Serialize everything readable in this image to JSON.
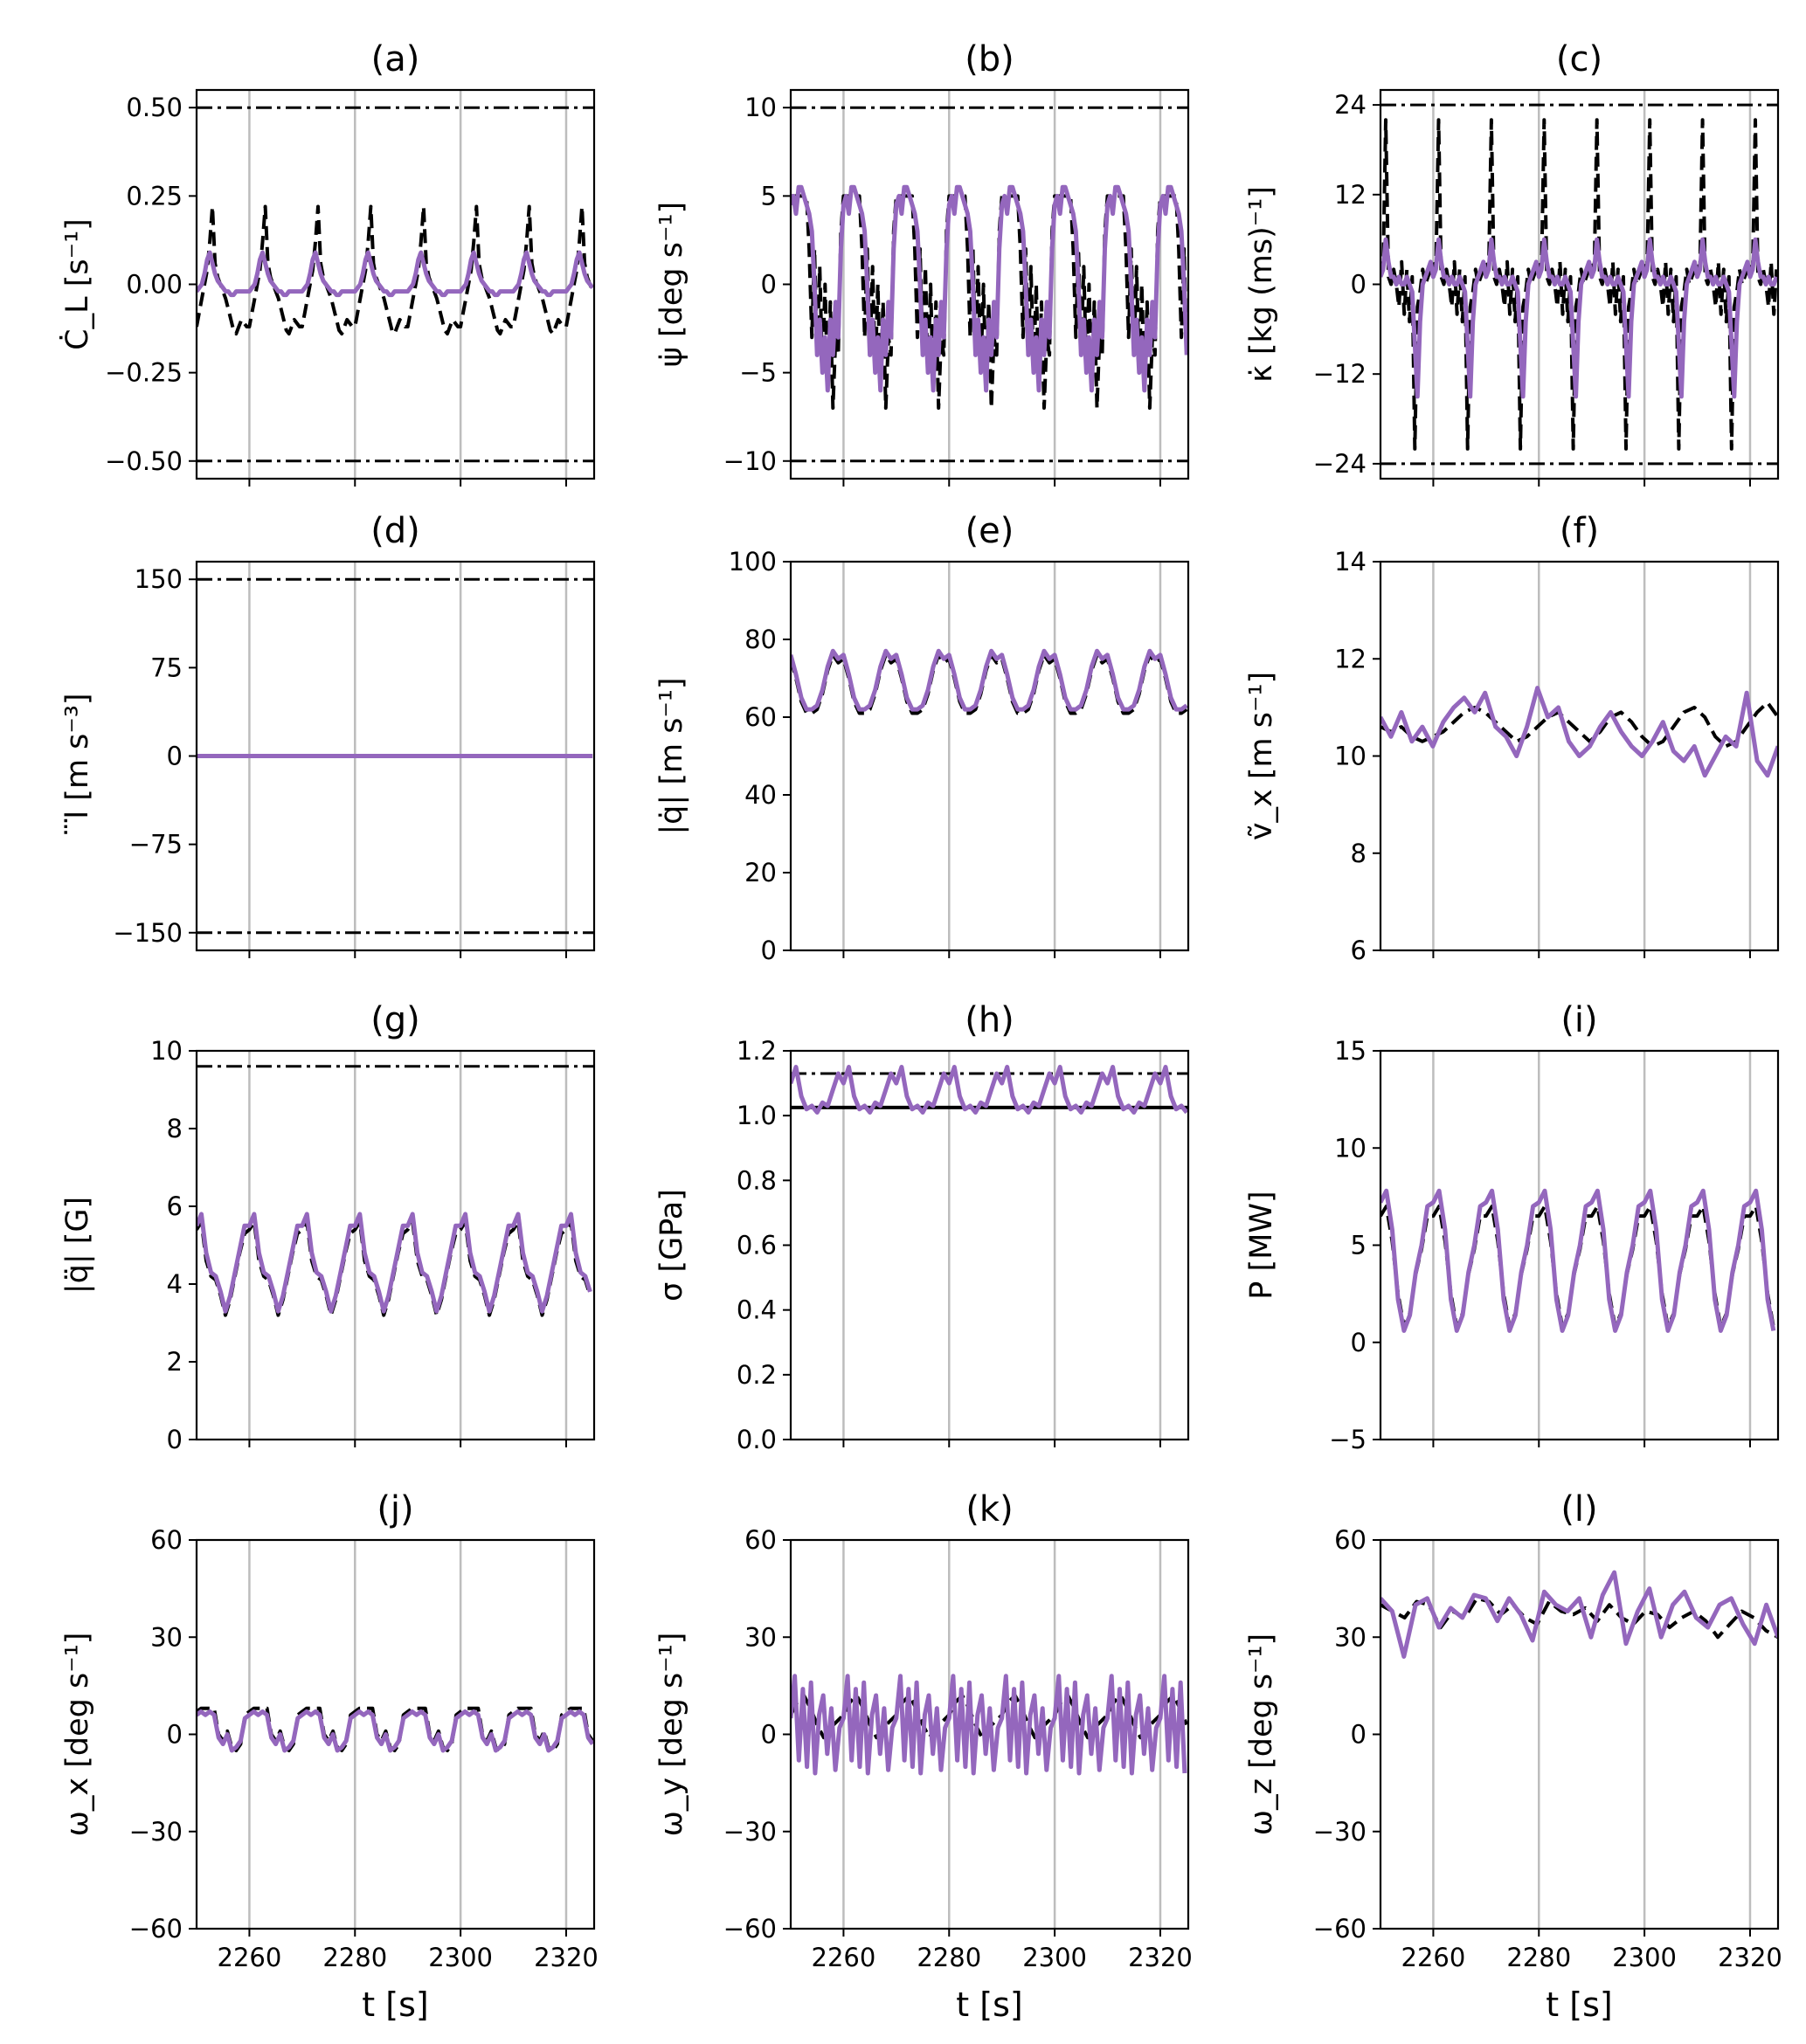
{
  "colors": {
    "simulated": "#9467bd",
    "reference": "#000000",
    "limit": "#000000",
    "grid": "#bdbdbd"
  },
  "x_axis": {
    "label": "t [s]",
    "tick_values": [
      2260,
      2280,
      2300,
      2320
    ],
    "tick_labels": [
      "2260",
      "2280",
      "2300",
      "2320"
    ],
    "xlim": [
      2250,
      2325.3
    ]
  },
  "chart_data": [
    {
      "id": "a",
      "type": "line",
      "title": "(a)",
      "ylabel": "Ċ_L [s⁻¹]",
      "ylim": [
        -0.55,
        0.55
      ],
      "yticks": [
        -0.5,
        -0.25,
        0,
        0.25,
        0.5
      ],
      "ytick_labels": [
        "−0.50",
        "−0.25",
        "0.00",
        "0.25",
        "0.50"
      ],
      "limits": [
        0.5,
        -0.5
      ],
      "limit_style": "dashdot",
      "period": 10,
      "x_start": 2250,
      "reference": {
        "name": "reference",
        "style": "dashed",
        "values": [
          -0.12,
          -0.08,
          -0.04,
          0.0,
          0.04,
          0.12,
          0.22,
          0.06,
          0.02,
          0.0,
          -0.02,
          -0.04,
          -0.07,
          -0.1,
          -0.13,
          -0.14,
          -0.12,
          -0.1,
          -0.11,
          -0.12
        ]
      },
      "series": {
        "name": "simulated",
        "values": [
          -0.02,
          -0.01,
          0.0,
          0.03,
          0.07,
          0.09,
          0.06,
          0.03,
          0.01,
          0.0,
          -0.01,
          -0.02,
          -0.02,
          -0.03,
          -0.03,
          -0.02,
          -0.02,
          -0.02,
          -0.02,
          -0.02
        ]
      }
    },
    {
      "id": "b",
      "type": "line",
      "title": "(b)",
      "ylabel": "ψ̇ [deg s⁻¹]",
      "ylim": [
        -11,
        11
      ],
      "yticks": [
        -10,
        -5,
        0,
        5,
        10
      ],
      "ytick_labels": [
        "−10",
        "−5",
        "0",
        "5",
        "10"
      ],
      "limits": [
        10,
        -10
      ],
      "limit_style": "dashdot",
      "period": 10,
      "x_start": 2250,
      "reference": {
        "name": "reference",
        "style": "dashed",
        "values": [
          5,
          5,
          5,
          5,
          5,
          5,
          5,
          2,
          -3,
          2,
          -4,
          1,
          -5,
          0,
          -6,
          -1,
          -7,
          -3,
          -4,
          3
        ]
      },
      "series": {
        "name": "simulated",
        "values": [
          4.5,
          5,
          4,
          5.5,
          5.5,
          5,
          4.5,
          4,
          3,
          0,
          -4,
          -2,
          -5,
          -3,
          -6,
          -2,
          -4,
          -1,
          -3,
          2
        ]
      }
    },
    {
      "id": "c",
      "type": "line",
      "title": "(c)",
      "ylabel": "κ̇ [kg (ms)⁻¹]",
      "ylim": [
        -26,
        26
      ],
      "yticks": [
        -24,
        -12,
        0,
        12,
        24
      ],
      "ytick_labels": [
        "−24",
        "−12",
        "0",
        "12",
        "24"
      ],
      "limits": [
        24,
        -24
      ],
      "limit_style": "dashdot",
      "period": 10,
      "x_start": 2250,
      "reference": {
        "name": "reference",
        "style": "dashed",
        "values": [
          3,
          2,
          22,
          1,
          0,
          2,
          0,
          -3,
          3,
          -4,
          2,
          -5,
          1,
          -22,
          -3,
          -1,
          2,
          0,
          1,
          2
        ]
      },
      "series": {
        "name": "simulated",
        "values": [
          1,
          2,
          6,
          3,
          1,
          1,
          0,
          1,
          0,
          0,
          1,
          0,
          -1,
          -8,
          -15,
          -5,
          0,
          1,
          2,
          3
        ]
      }
    },
    {
      "id": "d",
      "type": "line",
      "title": "(d)",
      "ylabel": "⃛l [m s⁻³]",
      "ylim": [
        -165,
        165
      ],
      "yticks": [
        -150,
        -75,
        0,
        75,
        150
      ],
      "ytick_labels": [
        "−150",
        "−75",
        "0",
        "75",
        "150"
      ],
      "limits": [
        150,
        -150
      ],
      "limit_style": "dashdot",
      "period": 10,
      "x_start": 2250,
      "reference": {
        "name": "reference",
        "style": "dashed",
        "values": [
          0,
          0
        ]
      },
      "series": {
        "name": "simulated",
        "values": [
          0,
          0
        ]
      }
    },
    {
      "id": "e",
      "type": "line",
      "title": "(e)",
      "ylabel": "|q̇| [m s⁻¹]",
      "ylim": [
        0,
        100
      ],
      "yticks": [
        0,
        20,
        40,
        60,
        80,
        100
      ],
      "ytick_labels": [
        "0",
        "20",
        "40",
        "60",
        "80",
        "100"
      ],
      "limits": [],
      "period": 10,
      "x_start": 2250,
      "reference": {
        "name": "reference",
        "style": "dashed",
        "values": [
          75,
          70,
          64,
          61,
          61,
          62,
          66,
          72,
          76,
          74
        ]
      },
      "series": {
        "name": "simulated",
        "values": [
          76,
          71,
          65,
          62,
          62,
          63,
          67,
          73,
          77,
          75
        ]
      }
    },
    {
      "id": "f",
      "type": "line",
      "title": "(f)",
      "ylabel": "ṽ_x [m s⁻¹]",
      "ylim": [
        6,
        14
      ],
      "yticks": [
        6,
        8,
        10,
        12,
        14
      ],
      "ytick_labels": [
        "6",
        "8",
        "10",
        "12",
        "14"
      ],
      "limits": [],
      "x_start": 2250,
      "reference": {
        "name": "reference",
        "style": "dashed",
        "values": [
          10.6,
          10.5,
          10.6,
          10.4,
          10.3,
          10.4,
          10.5,
          10.7,
          10.9,
          11.0,
          10.9,
          10.7,
          10.5,
          10.3,
          10.4,
          10.6,
          10.8,
          10.9,
          10.7,
          10.5,
          10.3,
          10.5,
          10.8,
          10.9,
          10.7,
          10.4,
          10.2,
          10.3,
          10.6,
          10.9,
          11.0,
          10.8,
          10.4,
          10.2,
          10.3,
          10.6,
          10.9,
          11.1,
          10.8
        ]
      },
      "series": {
        "name": "simulated",
        "values": [
          10.8,
          10.4,
          10.9,
          10.3,
          10.6,
          10.2,
          10.7,
          11.0,
          11.2,
          10.9,
          11.3,
          10.6,
          10.4,
          10.0,
          10.6,
          11.4,
          10.8,
          11.0,
          10.3,
          10.0,
          10.2,
          10.6,
          10.9,
          10.5,
          10.2,
          10.0,
          10.3,
          10.7,
          10.1,
          9.9,
          10.2,
          9.6,
          10.0,
          10.4,
          10.2,
          11.3,
          9.9,
          9.6,
          10.2
        ]
      }
    },
    {
      "id": "g",
      "type": "line",
      "title": "(g)",
      "ylabel": "|q̈| [G]",
      "ylim": [
        0,
        10
      ],
      "yticks": [
        0,
        2,
        4,
        6,
        8,
        10
      ],
      "ytick_labels": [
        "0",
        "2",
        "4",
        "6",
        "8",
        "10"
      ],
      "limits": [
        9.6
      ],
      "limit_style": "dashdot",
      "period": 10,
      "x_start": 2250,
      "reference": {
        "name": "reference",
        "style": "dashed",
        "values": [
          5.4,
          5.6,
          4.6,
          4.2,
          4.1,
          3.7,
          3.2,
          3.6,
          4.2,
          4.8,
          5.3
        ]
      },
      "series": {
        "name": "simulated",
        "values": [
          5.5,
          5.8,
          4.8,
          4.3,
          4.2,
          3.8,
          3.3,
          3.7,
          4.3,
          4.9,
          5.5
        ]
      }
    },
    {
      "id": "h",
      "type": "line",
      "title": "(h)",
      "ylabel": "σ [GPa]",
      "ylim": [
        0,
        1.2
      ],
      "yticks": [
        0,
        0.2,
        0.4,
        0.6,
        0.8,
        1.0,
        1.2
      ],
      "ytick_labels": [
        "0.0",
        "0.2",
        "0.4",
        "0.6",
        "0.8",
        "1.0",
        "1.2"
      ],
      "limits": [
        1.13
      ],
      "limit_style": "dashdot",
      "solid_lines": [
        1.025
      ],
      "period": 10,
      "x_start": 2250,
      "reference": {
        "name": "reference",
        "style": "dashed",
        "values": [
          1.1,
          1.15,
          1.06,
          1.02,
          1.03,
          1.01,
          1.04,
          1.03,
          1.08,
          1.13
        ]
      },
      "series": {
        "name": "simulated",
        "values": [
          1.1,
          1.15,
          1.06,
          1.02,
          1.03,
          1.01,
          1.04,
          1.03,
          1.08,
          1.13
        ]
      }
    },
    {
      "id": "i",
      "type": "line",
      "title": "(i)",
      "ylabel": "P [MW]",
      "ylim": [
        -5,
        15
      ],
      "yticks": [
        -5,
        0,
        5,
        10,
        15
      ],
      "ytick_labels": [
        "−5",
        "0",
        "5",
        "10",
        "15"
      ],
      "limits": [],
      "period": 10,
      "x_start": 2250,
      "reference": {
        "name": "reference",
        "style": "dashed",
        "values": [
          6.5,
          7.0,
          5.2,
          2.5,
          0.8,
          1.5,
          3.5,
          4.8,
          6.5
        ]
      },
      "series": {
        "name": "simulated",
        "values": [
          7.2,
          7.8,
          5.8,
          2.2,
          0.6,
          1.4,
          3.6,
          5.0,
          7.0
        ]
      }
    },
    {
      "id": "j",
      "type": "line",
      "title": "(j)",
      "ylabel": "ω_x [deg s⁻¹]",
      "ylim": [
        -60,
        60
      ],
      "yticks": [
        -60,
        -30,
        0,
        30,
        60
      ],
      "ytick_labels": [
        "−60",
        "−30",
        "0",
        "30",
        "60"
      ],
      "limits": [],
      "period": 10,
      "x_start": 2250,
      "reference": {
        "name": "reference",
        "style": "dashed",
        "values": [
          7,
          8,
          8,
          8,
          8,
          0,
          -2,
          1,
          -4,
          -5,
          -3,
          6
        ]
      },
      "series": {
        "name": "simulated",
        "values": [
          6,
          7,
          6,
          7,
          6,
          -1,
          -3,
          0,
          -5,
          -4,
          -2,
          5
        ]
      }
    },
    {
      "id": "k",
      "type": "line",
      "title": "(k)",
      "ylabel": "ω_y [deg s⁻¹]",
      "ylim": [
        -60,
        60
      ],
      "yticks": [
        -60,
        -30,
        0,
        30,
        60
      ],
      "ytick_labels": [
        "−60",
        "−30",
        "0",
        "30",
        "60"
      ],
      "limits": [],
      "period": 10,
      "x_start": 2250,
      "reference": {
        "name": "reference",
        "style": "dashed",
        "values": [
          6,
          10,
          12,
          8,
          3,
          -1,
          2,
          4
        ]
      },
      "series": {
        "name": "simulated",
        "values": [
          5,
          18,
          -8,
          14,
          -10,
          16,
          -12,
          6,
          12,
          -6,
          8,
          -11,
          2
        ]
      }
    },
    {
      "id": "l",
      "type": "line",
      "title": "(l)",
      "ylabel": "ω_z [deg s⁻¹]",
      "ylim": [
        -60,
        60
      ],
      "yticks": [
        -60,
        -30,
        0,
        30,
        60
      ],
      "ytick_labels": [
        "−60",
        "−30",
        "0",
        "30",
        "60"
      ],
      "limits": [],
      "x_start": 2250,
      "reference": {
        "name": "reference",
        "style": "dashed",
        "values": [
          40,
          38,
          36,
          41,
          40,
          33,
          38,
          36,
          42,
          41,
          37,
          40,
          36,
          34,
          41,
          38,
          37,
          39,
          35,
          40,
          36,
          34,
          38,
          37,
          33,
          36,
          38,
          35,
          30,
          34,
          38,
          36,
          32,
          30
        ]
      },
      "series": {
        "name": "simulated",
        "values": [
          42,
          38,
          24,
          40,
          42,
          33,
          39,
          36,
          43,
          42,
          35,
          42,
          37,
          29,
          44,
          40,
          38,
          42,
          30,
          43,
          50,
          28,
          38,
          45,
          30,
          40,
          44,
          36,
          33,
          40,
          42,
          34,
          28,
          40,
          30
        ]
      }
    }
  ]
}
